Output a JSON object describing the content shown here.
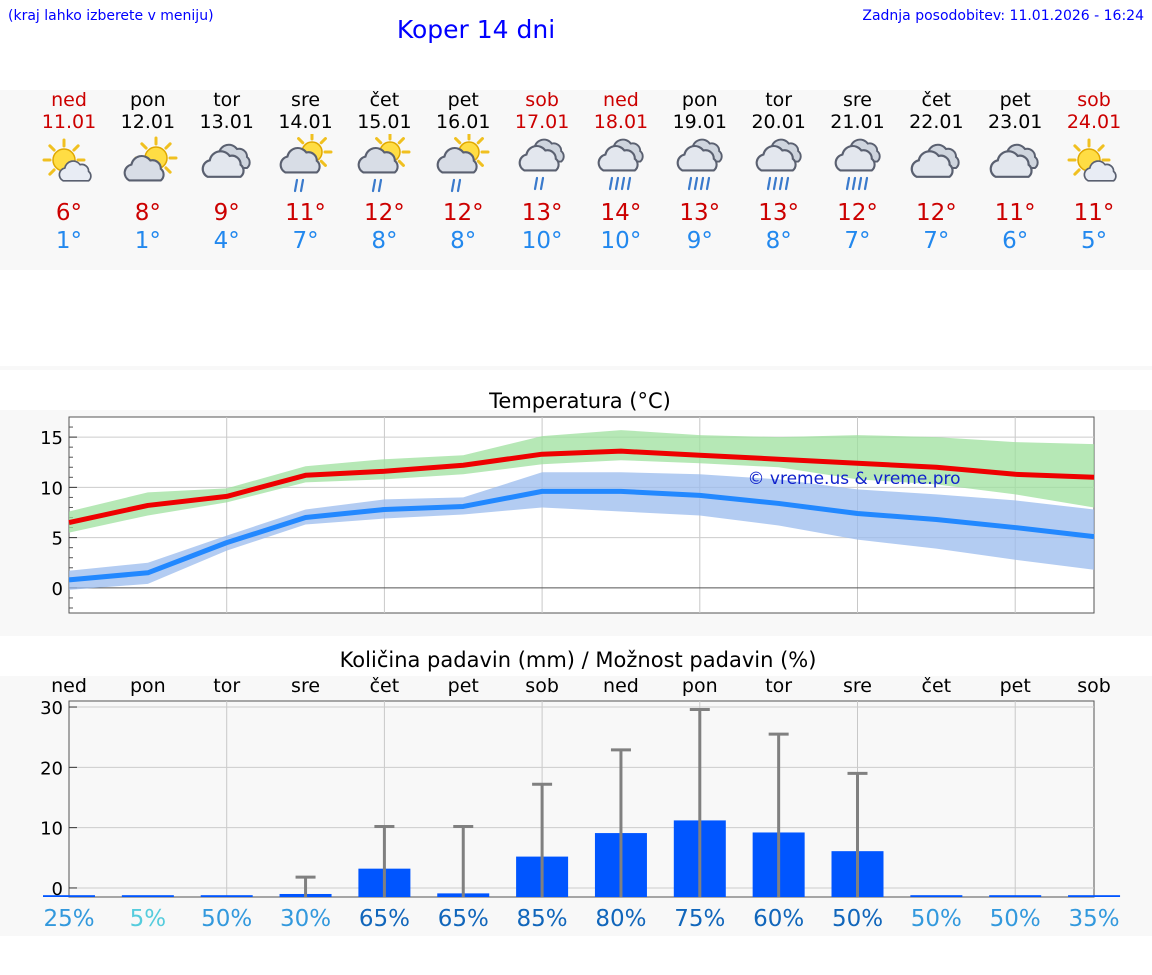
{
  "header": {
    "hint": "(kraj lahko izberete v meniju)",
    "title": "Koper 14 dni",
    "updated": "Zadnja posodobitev: 11.01.2026 - 16:24"
  },
  "days": [
    {
      "name": "ned",
      "date": "11.01",
      "weekend": true,
      "icon": "partly-cloudy-sun-icon",
      "tmax": "6°",
      "tmin": "1°"
    },
    {
      "name": "pon",
      "date": "12.01",
      "weekend": false,
      "icon": "sun-cloud-icon",
      "tmax": "8°",
      "tmin": "1°"
    },
    {
      "name": "tor",
      "date": "13.01",
      "weekend": false,
      "icon": "cloudy-icon",
      "tmax": "9°",
      "tmin": "4°"
    },
    {
      "name": "sre",
      "date": "14.01",
      "weekend": false,
      "icon": "sun-cloud-rain-icon",
      "tmax": "11°",
      "tmin": "7°"
    },
    {
      "name": "čet",
      "date": "15.01",
      "weekend": false,
      "icon": "sun-cloud-rain-icon",
      "tmax": "12°",
      "tmin": "8°"
    },
    {
      "name": "pet",
      "date": "16.01",
      "weekend": false,
      "icon": "sun-cloud-rain-icon",
      "tmax": "12°",
      "tmin": "8°"
    },
    {
      "name": "sob",
      "date": "17.01",
      "weekend": true,
      "icon": "cloud-rain-icon",
      "tmax": "13°",
      "tmin": "10°"
    },
    {
      "name": "ned",
      "date": "18.01",
      "weekend": true,
      "icon": "cloud-heavy-rain-icon",
      "tmax": "14°",
      "tmin": "10°"
    },
    {
      "name": "pon",
      "date": "19.01",
      "weekend": false,
      "icon": "cloud-heavy-rain-icon",
      "tmax": "13°",
      "tmin": "9°"
    },
    {
      "name": "tor",
      "date": "20.01",
      "weekend": false,
      "icon": "cloud-heavy-rain-icon",
      "tmax": "13°",
      "tmin": "8°"
    },
    {
      "name": "sre",
      "date": "21.01",
      "weekend": false,
      "icon": "cloud-heavy-rain-icon",
      "tmax": "12°",
      "tmin": "7°"
    },
    {
      "name": "čet",
      "date": "22.01",
      "weekend": false,
      "icon": "cloudy-icon",
      "tmax": "12°",
      "tmin": "7°"
    },
    {
      "name": "pet",
      "date": "23.01",
      "weekend": false,
      "icon": "cloudy-icon",
      "tmax": "11°",
      "tmin": "6°"
    },
    {
      "name": "sob",
      "date": "24.01",
      "weekend": true,
      "icon": "partly-cloudy-sun-icon",
      "tmax": "11°",
      "tmin": "5°"
    }
  ],
  "chart_data": [
    {
      "type": "line",
      "title": "Temperatura (°C)",
      "watermark": "© vreme.us & vreme.pro",
      "ylim": [
        -2.5,
        17
      ],
      "yticks": [
        0,
        5,
        10,
        15
      ],
      "x": [
        0,
        1,
        2,
        3,
        4,
        5,
        6,
        7,
        8,
        9,
        10,
        11,
        12,
        13
      ],
      "series": [
        {
          "name": "max",
          "color": "#ee0000",
          "values": [
            6.5,
            8.2,
            9.1,
            11.2,
            11.6,
            12.2,
            13.3,
            13.6,
            13.2,
            12.8,
            12.4,
            12.0,
            11.3,
            11.0
          ]
        },
        {
          "name": "min",
          "color": "#2288ff",
          "values": [
            0.8,
            1.5,
            4.5,
            7.0,
            7.8,
            8.1,
            9.6,
            9.6,
            9.2,
            8.4,
            7.4,
            6.8,
            6.0,
            5.1
          ]
        }
      ],
      "bands": [
        {
          "name": "max-range",
          "color": "#9ee09e",
          "low": [
            5.5,
            7.2,
            8.5,
            10.5,
            10.8,
            11.3,
            12.3,
            12.7,
            12.4,
            12.0,
            10.8,
            10.3,
            9.3,
            8.0
          ],
          "high": [
            7.6,
            9.5,
            9.9,
            12.1,
            12.8,
            13.2,
            15.1,
            15.7,
            15.2,
            15.0,
            15.2,
            15.0,
            14.5,
            14.3
          ]
        },
        {
          "name": "min-range",
          "color": "#99bbee",
          "low": [
            -0.2,
            0.4,
            3.7,
            6.3,
            6.9,
            7.3,
            8.0,
            7.6,
            7.2,
            6.2,
            4.8,
            3.9,
            2.8,
            1.8
          ],
          "high": [
            1.7,
            2.5,
            5.2,
            7.8,
            8.8,
            9.0,
            11.5,
            11.5,
            11.3,
            10.8,
            9.8,
            9.3,
            8.7,
            7.8
          ]
        }
      ]
    },
    {
      "type": "bar",
      "title": "Količina padavin (mm) / Možnost padavin (%)",
      "categories": [
        "ned",
        "pon",
        "tor",
        "sre",
        "čet",
        "pet",
        "sob",
        "ned",
        "pon",
        "tor",
        "sre",
        "čet",
        "pet",
        "sob"
      ],
      "ylim": [
        -1.5,
        31
      ],
      "yticks": [
        0,
        10,
        20,
        30
      ],
      "values": [
        0,
        0,
        0,
        0.2,
        4.4,
        0.3,
        6.4,
        10.3,
        12.4,
        10.4,
        7.3,
        0,
        0,
        0
      ],
      "error_max": [
        0,
        0,
        0,
        1.8,
        10.2,
        10.2,
        17.2,
        22.9,
        29.6,
        25.5,
        19.0,
        0,
        0,
        0
      ],
      "probabilities": [
        {
          "label": "25%",
          "color": "#3399dd"
        },
        {
          "label": "5%",
          "color": "#55ccdd"
        },
        {
          "label": "50%",
          "color": "#3399dd"
        },
        {
          "label": "30%",
          "color": "#3399dd"
        },
        {
          "label": "65%",
          "color": "#1166bb"
        },
        {
          "label": "65%",
          "color": "#1166bb"
        },
        {
          "label": "85%",
          "color": "#1166bb"
        },
        {
          "label": "80%",
          "color": "#1166bb"
        },
        {
          "label": "75%",
          "color": "#1166bb"
        },
        {
          "label": "60%",
          "color": "#1166bb"
        },
        {
          "label": "50%",
          "color": "#1166bb"
        },
        {
          "label": "50%",
          "color": "#3399dd"
        },
        {
          "label": "50%",
          "color": "#3399dd"
        },
        {
          "label": "35%",
          "color": "#3399dd"
        }
      ]
    }
  ]
}
